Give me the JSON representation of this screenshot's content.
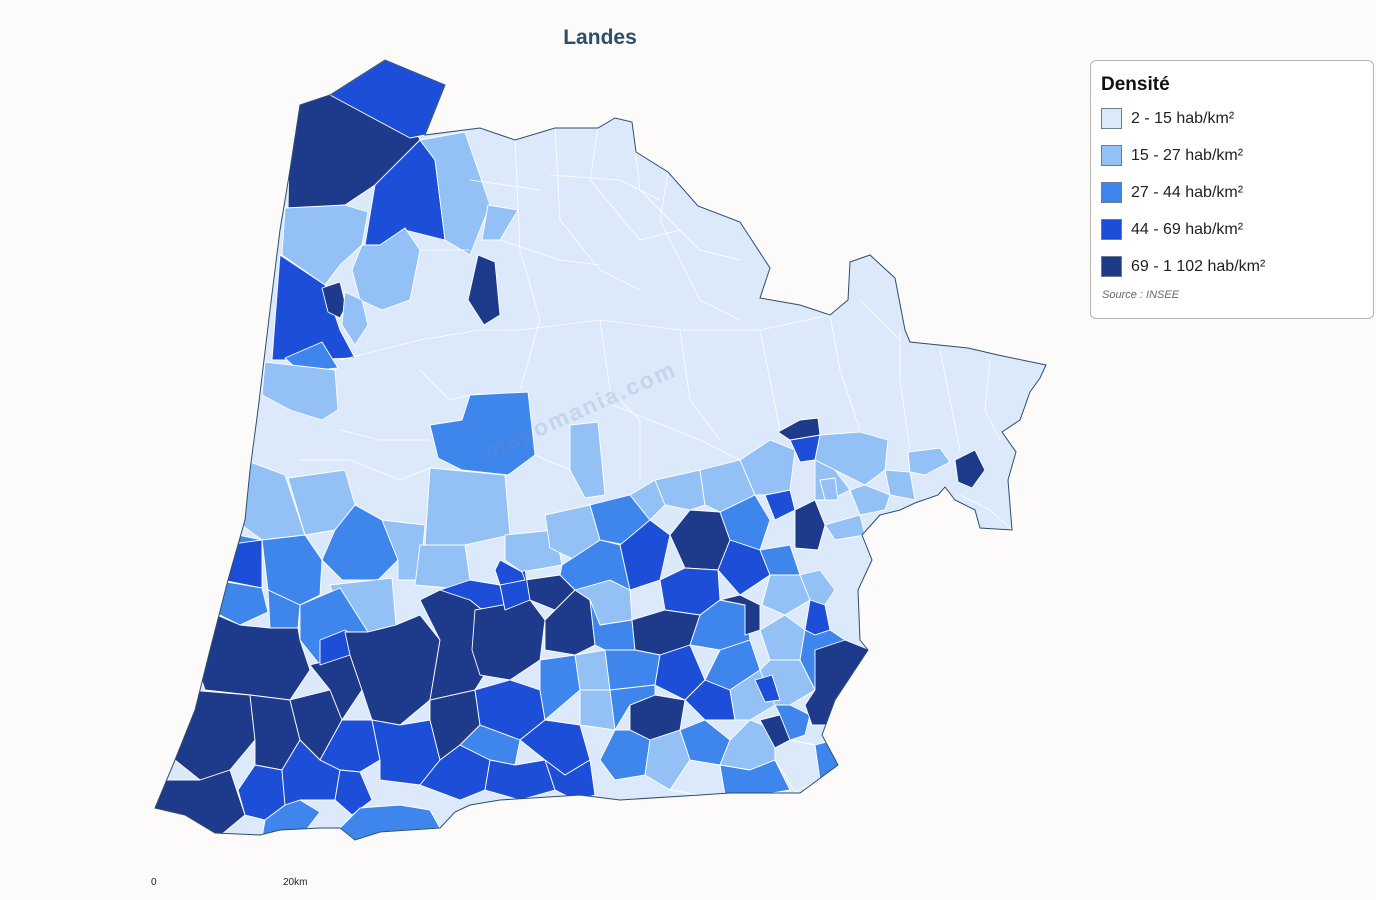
{
  "title": "Landes",
  "watermark": "mapomania.com",
  "legend": {
    "title": "Densité",
    "source": "Source : INSEE",
    "items": [
      {
        "label": "2 - 15 hab/km²",
        "color": "#dbe9fb"
      },
      {
        "label": "15 - 27 hab/km²",
        "color": "#93c1f6"
      },
      {
        "label": "27 - 44 hab/km²",
        "color": "#3e86ec"
      },
      {
        "label": "44 - 69 hab/km²",
        "color": "#1d4ed8"
      },
      {
        "label": "69 - 1 102 hab/km²",
        "color": "#1e3a8a"
      }
    ]
  },
  "scale": {
    "start_label": "0",
    "end_label": "20km"
  },
  "colors": {
    "border": "#2c4e6d",
    "background": "#fcfbfa"
  }
}
